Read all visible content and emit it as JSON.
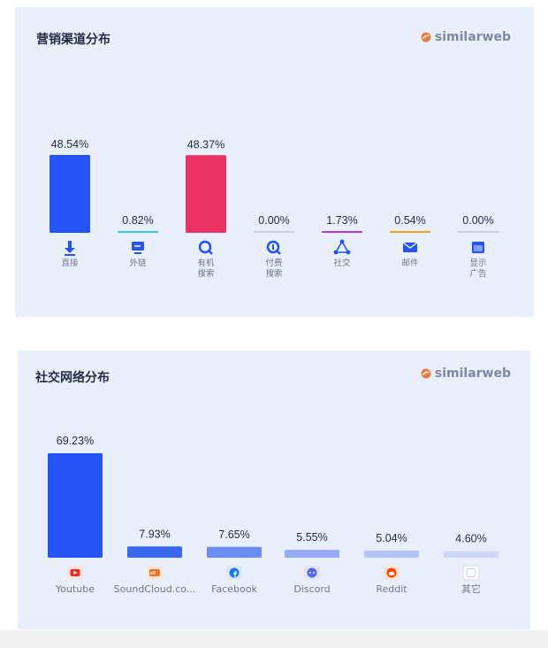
{
  "marketing_card": {
    "title": "营销渠道分布",
    "brand": "similarweb"
  },
  "social_card": {
    "title": "社交网络分布",
    "brand": "similarweb"
  },
  "colors": {
    "card_bg": "#eaf0fb",
    "blue": "#2454f5",
    "pink": "#ea3265",
    "cyan": "#38c8e8",
    "purple": "#b03ae0",
    "orange": "#f0a020",
    "gray": "#c8d0de",
    "brand_orange": "#f07a3c"
  },
  "chart_data": [
    {
      "type": "bar",
      "title": "营销渠道分布",
      "categories": [
        "直接",
        "外链",
        "有机\n搜索",
        "付费\n搜索",
        "社交",
        "邮件",
        "显示\n广告"
      ],
      "values": [
        48.54,
        0.82,
        48.37,
        0.0,
        1.73,
        0.54,
        0.0
      ],
      "value_labels": [
        "48.54%",
        "0.82%",
        "48.37%",
        "0.00%",
        "1.73%",
        "0.54%",
        "0.00%"
      ],
      "bar_colors": [
        "#2454f5",
        "#38c8e8",
        "#ea3265",
        "#c8d0de",
        "#b03ae0",
        "#f0a020",
        "#c8d0de"
      ],
      "icons": [
        "download-arrow-icon",
        "monitor-icon",
        "search-icon",
        "paid-search-icon",
        "social-icon",
        "mail-icon",
        "display-ad-icon"
      ],
      "unit": "%",
      "ylim": [
        0,
        48.54
      ],
      "grid": false
    },
    {
      "type": "bar",
      "title": "社交网络分布",
      "categories": [
        "Youtube",
        "SoundCloud.co...",
        "Facebook",
        "Discord",
        "Reddit",
        "其它"
      ],
      "values": [
        69.23,
        7.93,
        7.65,
        5.55,
        5.04,
        4.6
      ],
      "value_labels": [
        "69.23%",
        "7.93%",
        "7.65%",
        "5.55%",
        "5.04%",
        "4.60%"
      ],
      "bar_colors": [
        "#2454f5",
        "#3a68f3",
        "#6b8df5",
        "#93abf6",
        "#b3c4f8",
        "#cdd9f9"
      ],
      "icons": [
        "youtube-icon",
        "soundcloud-icon",
        "facebook-icon",
        "discord-icon",
        "reddit-icon",
        "other-icon"
      ],
      "unit": "%",
      "ylim": [
        0,
        69.23
      ],
      "grid": false
    }
  ]
}
